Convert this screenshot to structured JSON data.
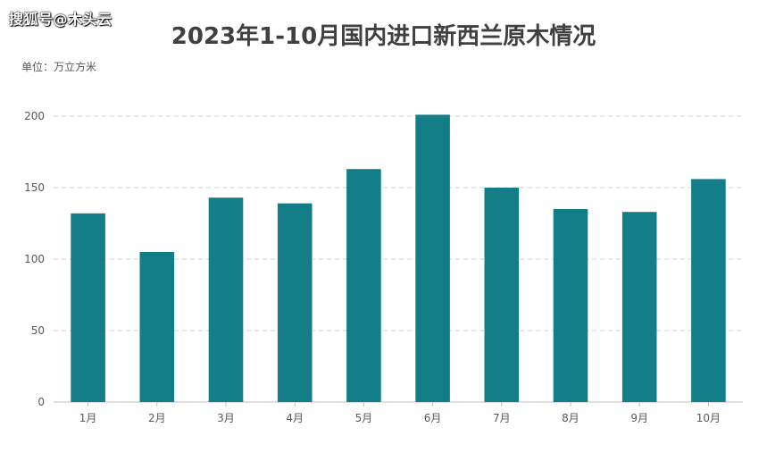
{
  "watermark": "搜狐号@木头云",
  "chart_data": {
    "type": "bar",
    "title": "2023年1-10月国内进口新西兰原木情况",
    "unit_label": "单位：万立方米",
    "categories": [
      "1月",
      "2月",
      "3月",
      "4月",
      "5月",
      "6月",
      "7月",
      "8月",
      "9月",
      "10月"
    ],
    "values": [
      132,
      105,
      143,
      139,
      163,
      201,
      150,
      135,
      133,
      156
    ],
    "ylim": [
      0,
      200
    ],
    "yticks": [
      0,
      50,
      100,
      150,
      200
    ],
    "bar_color": "#137e87",
    "grid": true,
    "grid_style": "dashed"
  }
}
